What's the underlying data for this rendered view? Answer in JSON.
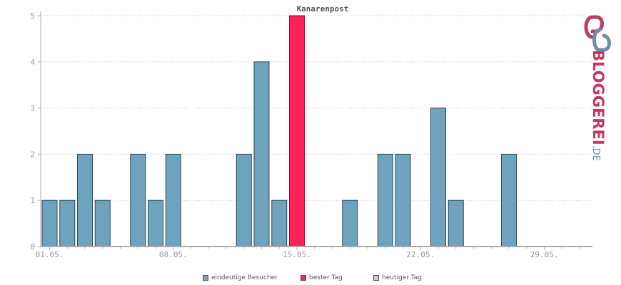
{
  "chart_data": {
    "type": "bar",
    "title": "Kanarenpost",
    "days": [
      "01.05.",
      "02.05.",
      "03.05.",
      "04.05.",
      "05.05.",
      "06.05.",
      "07.05.",
      "08.05.",
      "09.05.",
      "10.05.",
      "11.05.",
      "12.05.",
      "13.05.",
      "14.05.",
      "15.05.",
      "16.05.",
      "17.05.",
      "18.05.",
      "19.05.",
      "20.05.",
      "21.05.",
      "22.05.",
      "23.05.",
      "24.05.",
      "25.05.",
      "26.05.",
      "27.05.",
      "28.05.",
      "29.05.",
      "30.05.",
      "31.05."
    ],
    "xtick_labels": [
      "01.05.",
      "08.05.",
      "15.05.",
      "22.05.",
      "29.05."
    ],
    "series": [
      {
        "name": "eindeutige Besucher",
        "color": "#6fa3bd",
        "values": [
          1,
          1,
          2,
          1,
          0,
          2,
          1,
          2,
          0,
          0,
          0,
          2,
          4,
          1,
          5,
          0,
          0,
          1,
          0,
          2,
          2,
          0,
          3,
          1,
          0,
          0,
          2,
          0,
          0,
          0,
          0
        ]
      }
    ],
    "best_day_index": 14,
    "best_day_color": "#ff2157",
    "today_color": "#cccccc",
    "ylim": [
      0,
      5
    ],
    "yticks": [
      0,
      1,
      2,
      3,
      4,
      5
    ],
    "grid": true,
    "legend": [
      {
        "label": "eindeutige Besucher",
        "color": "#6fa3bd"
      },
      {
        "label": "bester Tag",
        "color": "#ff2157"
      },
      {
        "label": "heutiger Tag",
        "color": "#cccccc"
      }
    ],
    "legend_position": "bottom"
  },
  "branding": {
    "logo_main": "BLOGGEREI",
    "logo_suffix": ".DE",
    "logo_icon": "bloggerei-logo-icon"
  }
}
